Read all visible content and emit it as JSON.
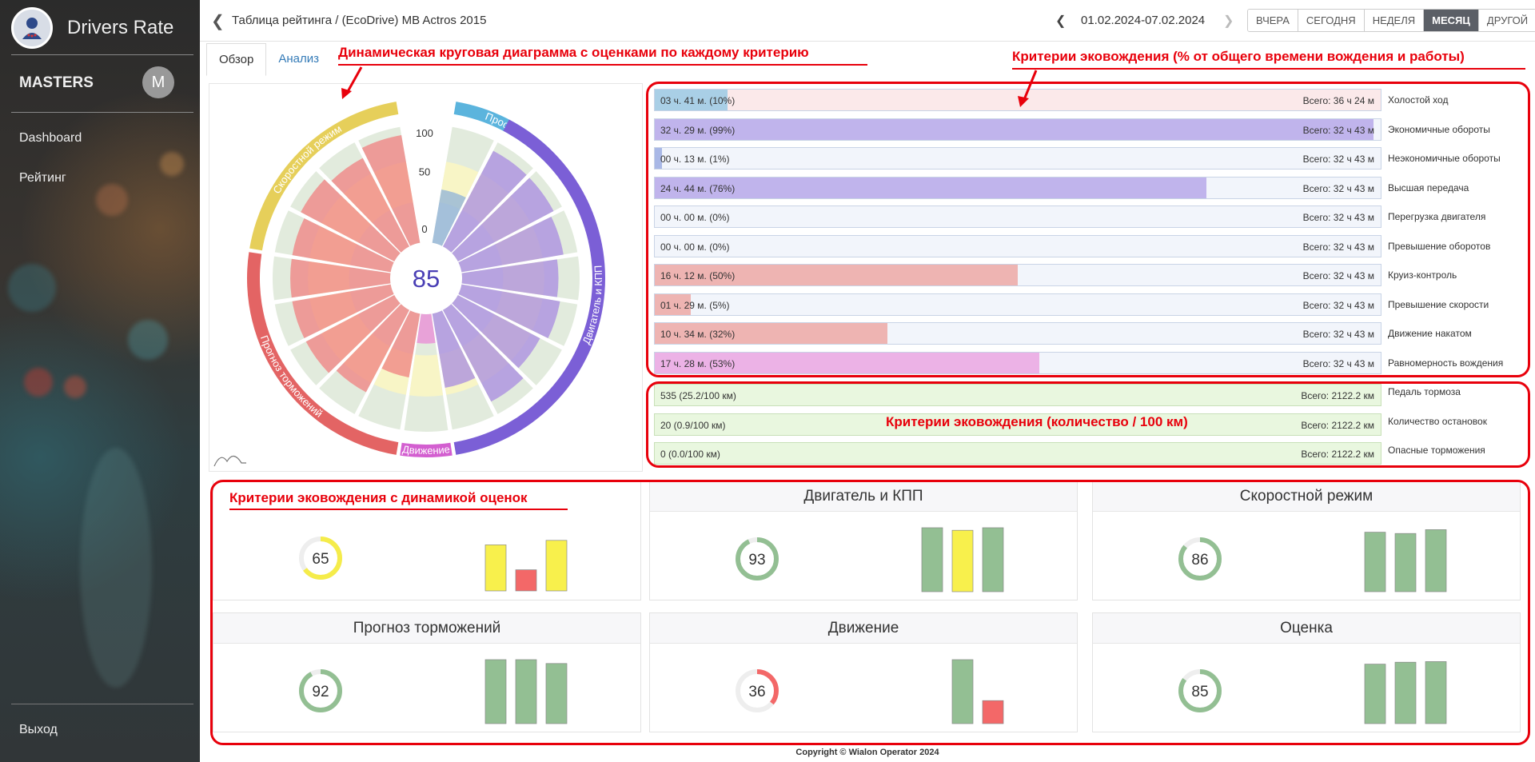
{
  "app": {
    "title": "Drivers Rate"
  },
  "sidebar": {
    "user": "MASTERS",
    "avatar_letter": "M",
    "items": [
      {
        "label": "Dashboard"
      },
      {
        "label": "Рейтинг"
      }
    ],
    "logout": "Выход"
  },
  "header": {
    "breadcrumb": "Таблица рейтинга  / (EcoDrive) MB Actros 2015",
    "date_range": "01.02.2024-07.02.2024",
    "periods": [
      {
        "label": "ВЧЕРА"
      },
      {
        "label": "СЕГОДНЯ"
      },
      {
        "label": "НЕДЕЛЯ"
      },
      {
        "label": "МЕСЯЦ",
        "active": true
      },
      {
        "label": "ДРУГОЙ"
      }
    ]
  },
  "tabs": [
    {
      "label": "Обзор",
      "active": true
    },
    {
      "label": "Анализ"
    }
  ],
  "annotations": {
    "polar": "Динамическая круговая диаграмма с оценками по каждому критерию",
    "time_criteria": "Критерии эковождения (% от общего времени вождения и работы)",
    "count_criteria": "Критерии эковождения (количество / 100 км)",
    "cards": "Критерии эковождения с динамикой оценок"
  },
  "polar": {
    "score": "85",
    "scale_labels": [
      "100",
      "50",
      "0"
    ],
    "groups": [
      {
        "label": "Простой",
        "color": "#5bb4dd"
      },
      {
        "label": "Двигатель и КПП",
        "color": "#7b5fd6"
      },
      {
        "label": "Движение",
        "color": "#d35fd0"
      },
      {
        "label": "Прогноз торможений",
        "color": "#e36464"
      },
      {
        "label": "Скоростной режим",
        "color": "#e6cf5a"
      }
    ],
    "sectors": [
      {
        "value": 46,
        "color": "#8fb1d8"
      },
      {
        "value": 92,
        "color": "#a88be0"
      },
      {
        "value": 92,
        "color": "#a88be0"
      },
      {
        "value": 88,
        "color": "#a88be0"
      },
      {
        "value": 82,
        "color": "#a88be0"
      },
      {
        "value": 85,
        "color": "#a88be0"
      },
      {
        "value": 79,
        "color": "#a88be0"
      },
      {
        "value": 88,
        "color": "#a88be0"
      },
      {
        "value": 64,
        "color": "#a88be0"
      },
      {
        "value": 25,
        "color": "#e98ad5"
      },
      {
        "value": 55,
        "color": "#f08080"
      },
      {
        "value": 79,
        "color": "#f08080"
      },
      {
        "value": 85,
        "color": "#f08080"
      },
      {
        "value": 85,
        "color": "#f08080"
      },
      {
        "value": 85,
        "color": "#f08080"
      },
      {
        "value": 85,
        "color": "#f08080"
      },
      {
        "value": 90,
        "color": "#f08080"
      },
      {
        "value": 85,
        "color": "#f08080"
      },
      {
        "value": 93,
        "color": "#f08080"
      }
    ]
  },
  "time_criteria": [
    {
      "label": "03 ч. 41 м. (10%)",
      "total": "Всего: 36 ч 24 м",
      "name": "Холостой ход",
      "percent": 10,
      "fill": "#a9cfe6",
      "bg": "#fbe9ea"
    },
    {
      "label": "32 ч. 29 м. (99%)",
      "total": "Всего: 32 ч 43 м",
      "name": "Экономичные обороты",
      "percent": 99,
      "fill": "#c0b4ec",
      "bg": "#f2f5fb"
    },
    {
      "label": "00 ч. 13 м. (1%)",
      "total": "Всего: 32 ч 43 м",
      "name": "Неэкономичные обороты",
      "percent": 1,
      "fill": "#a9b8e6",
      "bg": "#f2f5fb"
    },
    {
      "label": "24 ч. 44 м. (76%)",
      "total": "Всего: 32 ч 43 м",
      "name": "Высшая передача",
      "percent": 76,
      "fill": "#c0b4ec",
      "bg": "#f2f5fb"
    },
    {
      "label": "00 ч. 00 м. (0%)",
      "total": "Всего: 32 ч 43 м",
      "name": "Перегрузка двигателя",
      "percent": 0,
      "fill": "#c0b4ec",
      "bg": "#f2f5fb"
    },
    {
      "label": "00 ч. 00 м. (0%)",
      "total": "Всего: 32 ч 43 м",
      "name": "Превышение оборотов",
      "percent": 0,
      "fill": "#c0b4ec",
      "bg": "#f2f5fb"
    },
    {
      "label": "16 ч. 12 м. (50%)",
      "total": "Всего: 32 ч 43 м",
      "name": "Круиз-контроль",
      "percent": 50,
      "fill": "#eeb4b2",
      "bg": "#f2f5fb"
    },
    {
      "label": "01 ч. 29 м. (5%)",
      "total": "Всего: 32 ч 43 м",
      "name": "Превышение скорости",
      "percent": 5,
      "fill": "#eeb4b2",
      "bg": "#f2f5fb"
    },
    {
      "label": "10 ч. 34 м. (32%)",
      "total": "Всего: 32 ч 43 м",
      "name": "Движение накатом",
      "percent": 32,
      "fill": "#eeb4b2",
      "bg": "#f2f5fb"
    },
    {
      "label": "17 ч. 28 м. (53%)",
      "total": "Всего: 32 ч 43 м",
      "name": "Равномерность вождения",
      "percent": 53,
      "fill": "#ecb2e6",
      "bg": "#f2f5fb"
    }
  ],
  "count_criteria": [
    {
      "label": "535 (25.2/100 км)",
      "total": "Всего: 2122.2 км",
      "name": "Педаль тормоза"
    },
    {
      "label": "20 (0.9/100 км)",
      "total": "Всего: 2122.2 км",
      "name": "Количество остановок"
    },
    {
      "label": "0 (0.0/100 км)",
      "total": "Всего: 2122.2 км",
      "name": "Опасные торможения"
    }
  ],
  "cards": [
    {
      "title": "",
      "score": "65",
      "fraction": 0.65,
      "ring": "#f5ec4a",
      "bars": [
        {
          "value": 0.72,
          "color": "#f8f04c"
        },
        {
          "value": 0.33,
          "color": "#f36868"
        },
        {
          "value": 0.79,
          "color": "#f8f04c"
        }
      ]
    },
    {
      "title": "Двигатель и КПП",
      "score": "93",
      "fraction": 0.93,
      "ring": "#93bf93",
      "bars": [
        {
          "value": 1.0,
          "color": "#93bf93"
        },
        {
          "value": 0.96,
          "color": "#f8f04c"
        },
        {
          "value": 1.0,
          "color": "#93bf93"
        }
      ]
    },
    {
      "title": "Скоростной режим",
      "score": "86",
      "fraction": 0.86,
      "ring": "#93bf93",
      "bars": [
        {
          "value": 0.93,
          "color": "#93bf93"
        },
        {
          "value": 0.91,
          "color": "#93bf93"
        },
        {
          "value": 0.97,
          "color": "#93bf93"
        }
      ]
    },
    {
      "title": "Прогноз торможений",
      "score": "92",
      "fraction": 0.92,
      "ring": "#93bf93",
      "bars": [
        {
          "value": 1.0,
          "color": "#93bf93"
        },
        {
          "value": 1.0,
          "color": "#93bf93"
        },
        {
          "value": 0.94,
          "color": "#93bf93"
        }
      ]
    },
    {
      "title": "Движение",
      "score": "36",
      "fraction": 0.36,
      "ring": "#f36868",
      "bars": [
        {
          "value": 0,
          "color": "#93bf93"
        },
        {
          "value": 1.0,
          "color": "#93bf93"
        },
        {
          "value": 0.36,
          "color": "#f36868"
        }
      ]
    },
    {
      "title": "Оценка",
      "score": "85",
      "fraction": 0.85,
      "ring": "#93bf93",
      "bars": [
        {
          "value": 0.93,
          "color": "#93bf93"
        },
        {
          "value": 0.96,
          "color": "#93bf93"
        },
        {
          "value": 0.97,
          "color": "#93bf93"
        }
      ]
    }
  ],
  "footer": "Copyright © Wialon Operator 2024"
}
